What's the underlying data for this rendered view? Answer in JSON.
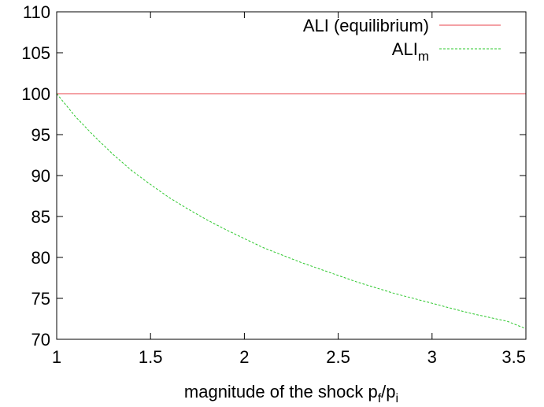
{
  "chart_data": {
    "type": "line",
    "xlabel": {
      "main": "magnitude of the shock p",
      "sub1": "f",
      "mid": "/p",
      "sub2": "i"
    },
    "ylabel": "",
    "xlim": [
      1,
      3.5
    ],
    "ylim": [
      70,
      110
    ],
    "xticks": [
      "1",
      "1.5",
      "2",
      "2.5",
      "3",
      "3.5"
    ],
    "yticks": [
      "70",
      "75",
      "80",
      "85",
      "90",
      "95",
      "100",
      "105",
      "110"
    ],
    "legend_position": "top-right",
    "grid": false,
    "series": [
      {
        "name": "ALI (equilibrium)",
        "legend_main": "ALI (equilibrium)",
        "legend_sub": "",
        "color": "#e8434b",
        "style": "solid",
        "x": [
          1,
          1.25,
          1.5,
          1.75,
          2,
          2.25,
          2.5,
          2.75,
          3,
          3.25,
          3.5
        ],
        "y": [
          100,
          100,
          100,
          100,
          100,
          100,
          100,
          100,
          100,
          100,
          100
        ]
      },
      {
        "name": "ALIm",
        "legend_main": "ALI",
        "legend_sub": "m",
        "color": "#2dc82d",
        "style": "dashed",
        "x": [
          1,
          1.1,
          1.2,
          1.3,
          1.4,
          1.5,
          1.6,
          1.7,
          1.8,
          1.9,
          2,
          2.1,
          2.2,
          2.3,
          2.4,
          2.5,
          2.6,
          2.7,
          2.8,
          2.9,
          3,
          3.1,
          3.2,
          3.3,
          3.4,
          3.5
        ],
        "y": [
          100,
          97.2,
          94.8,
          92.6,
          90.6,
          88.9,
          87.3,
          85.9,
          84.6,
          83.4,
          82.3,
          81.2,
          80.3,
          79.4,
          78.6,
          77.8,
          77.0,
          76.3,
          75.6,
          75.0,
          74.4,
          73.8,
          73.2,
          72.7,
          72.2,
          71.3
        ]
      }
    ]
  }
}
